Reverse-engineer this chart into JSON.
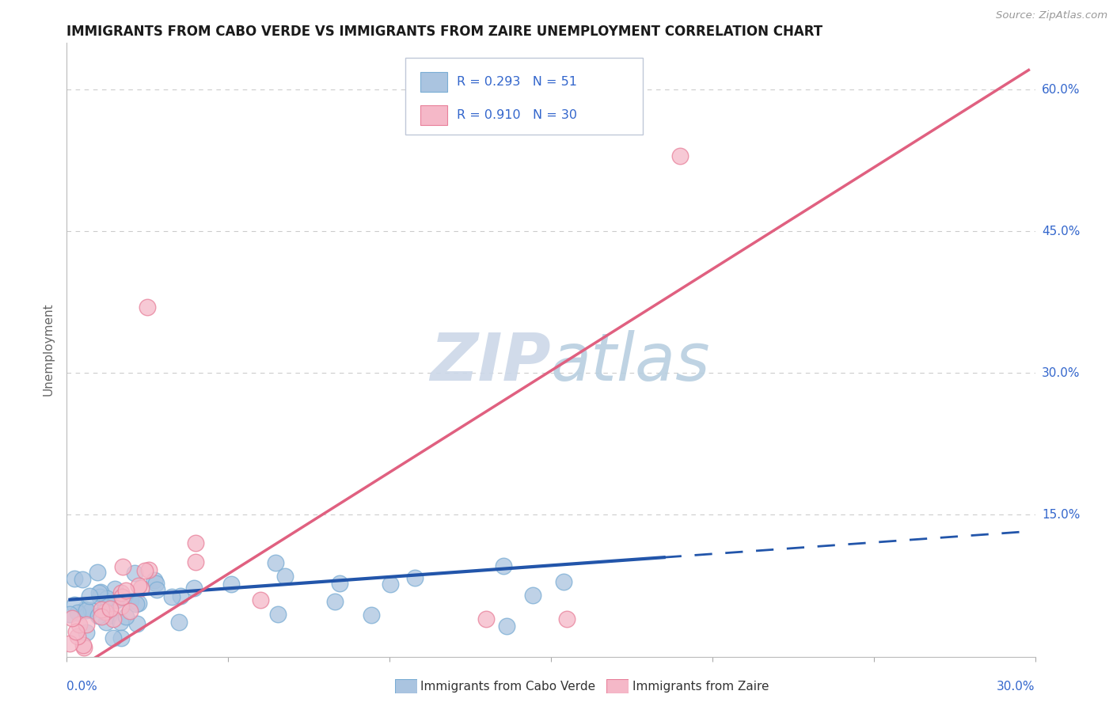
{
  "title": "IMMIGRANTS FROM CABO VERDE VS IMMIGRANTS FROM ZAIRE UNEMPLOYMENT CORRELATION CHART",
  "source": "Source: ZipAtlas.com",
  "ylabel": "Unemployment",
  "y_ticks": [
    0.0,
    0.15,
    0.3,
    0.45,
    0.6
  ],
  "y_tick_labels_right": [
    "15.0%",
    "30.0%",
    "45.0%",
    "60.0%"
  ],
  "x_lim": [
    0.0,
    0.3
  ],
  "y_lim": [
    0.0,
    0.65
  ],
  "cabo_verde_color": "#aac4e0",
  "cabo_verde_edge": "#7aadd4",
  "zaire_color": "#f5b8c8",
  "zaire_edge": "#e8809a",
  "cabo_verde_line_color": "#2255aa",
  "zaire_line_color": "#e06080",
  "R_cabo": 0.293,
  "N_cabo": 51,
  "R_zaire": 0.91,
  "N_zaire": 30,
  "label_color": "#3366CC",
  "watermark_color": "#ccd8e8",
  "background_color": "#ffffff",
  "grid_color": "#cccccc",
  "legend_box_color": "#e8eef8",
  "bottom_legend_cabo": "Immigrants from Cabo Verde",
  "bottom_legend_zaire": "Immigrants from Zaire"
}
